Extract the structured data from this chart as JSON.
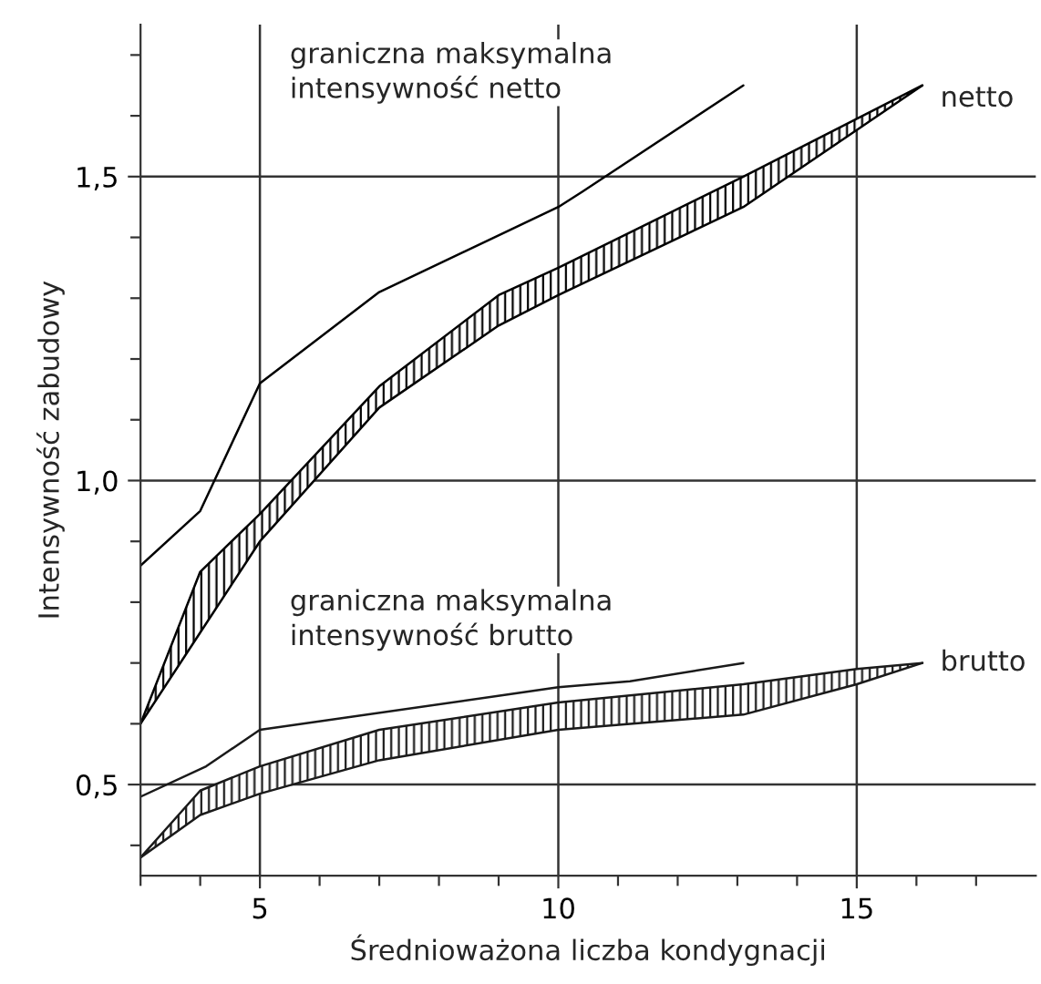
{
  "chart_data": {
    "type": "line",
    "xlabel": "Średnioważona liczba kondygnacji",
    "ylabel": "Intensywność zabudowy",
    "xlim": [
      3,
      18
    ],
    "ylim": [
      0.35,
      1.75
    ],
    "xticks": [
      {
        "value": 3,
        "label": null
      },
      {
        "value": 4,
        "label": null
      },
      5,
      {
        "value": 6,
        "label": null
      },
      {
        "value": 7,
        "label": null
      },
      {
        "value": 8,
        "label": null
      },
      {
        "value": 9,
        "label": null
      },
      10,
      {
        "value": 11,
        "label": null
      },
      {
        "value": 12,
        "label": null
      },
      {
        "value": 13,
        "label": null
      },
      {
        "value": 14,
        "label": null
      },
      15,
      {
        "value": 16,
        "label": null
      },
      {
        "value": 17,
        "label": null
      }
    ],
    "yticks": [
      {
        "value": 0.4,
        "label": null
      },
      {
        "value": 0.5,
        "label": "0,5"
      },
      {
        "value": 0.6,
        "label": null
      },
      {
        "value": 0.7,
        "label": null
      },
      {
        "value": 0.8,
        "label": null
      },
      {
        "value": 0.9,
        "label": null
      },
      {
        "value": 1.0,
        "label": "1,0"
      },
      {
        "value": 1.1,
        "label": null
      },
      {
        "value": 1.2,
        "label": null
      },
      {
        "value": 1.3,
        "label": null
      },
      {
        "value": 1.4,
        "label": null
      },
      {
        "value": 1.5,
        "label": "1,5"
      },
      {
        "value": 1.6,
        "label": null
      },
      {
        "value": 1.7,
        "label": null
      }
    ],
    "grid": true,
    "legend": false,
    "marker": "none",
    "line_style": "solid",
    "series": [
      {
        "name": "graniczna maksymalna\nintensywność netto",
        "color": "#000000",
        "x": [
          3,
          4,
          5,
          7,
          10,
          10.4,
          13.1
        ],
        "values": [
          0.86,
          0.95,
          1.16,
          1.31,
          1.45,
          1.475,
          1.65
        ]
      },
      {
        "name": "netto",
        "color": "#000000",
        "x": [
          3,
          4,
          5,
          7,
          9,
          10,
          13.1,
          16.1
        ],
        "values": [
          0.6,
          0.85,
          0.945,
          1.155,
          1.305,
          1.35,
          1.5,
          1.65
        ],
        "lower": [
          0.6,
          0.75,
          0.9,
          1.12,
          1.255,
          1.305,
          1.45,
          1.65
        ],
        "upper": [
          0.6,
          0.85,
          0.945,
          1.155,
          1.305,
          1.35,
          1.5,
          1.65
        ]
      },
      {
        "name": "graniczna maksymalna\nintensywność brutto",
        "color": "#1a1a1a",
        "x": [
          3,
          4.1,
          5,
          10,
          11.2,
          13.1
        ],
        "values": [
          0.48,
          0.53,
          0.59,
          0.66,
          0.67,
          0.7
        ]
      },
      {
        "name": "brutto",
        "color": "#1a1a1a",
        "x": [
          3,
          4,
          5,
          7,
          10,
          13.1,
          15,
          16.1
        ],
        "values": [
          0.38,
          0.49,
          0.53,
          0.59,
          0.635,
          0.665,
          0.69,
          0.7
        ],
        "lower": [
          0.38,
          0.45,
          0.485,
          0.54,
          0.59,
          0.615,
          0.665,
          0.7
        ],
        "upper": [
          0.38,
          0.49,
          0.53,
          0.59,
          0.635,
          0.665,
          0.69,
          0.7
        ]
      }
    ]
  }
}
